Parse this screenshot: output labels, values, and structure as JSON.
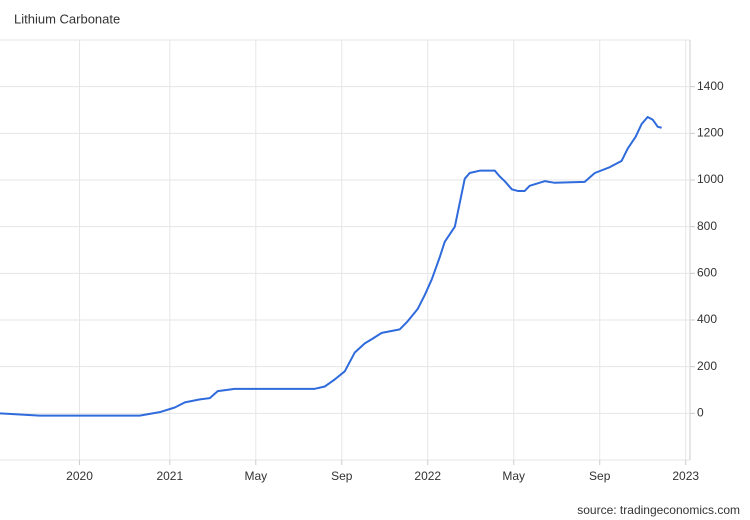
{
  "chart_data": {
    "type": "line",
    "title": "Lithium Carbonate",
    "source": "source: tradingeconomics.com",
    "x": [
      -7.9,
      -6.05,
      -1.4,
      -0.47,
      0.23,
      0.7,
      1.4,
      1.86,
      2.23,
      3.02,
      4.09,
      6.74,
      7.21,
      7.67,
      8.14,
      8.6,
      9.07,
      9.4,
      9.86,
      10.7,
      11.07,
      11.53,
      11.86,
      12.19,
      12.56,
      12.79,
      13.26,
      13.72,
      13.95,
      14.42,
      15.12,
      15.35,
      15.58,
      15.91,
      16.19,
      16.51,
      16.74,
      17.44,
      17.91,
      19.3,
      19.77,
      20.47,
      21.02,
      21.3,
      21.67,
      21.95,
      22.23,
      22.47,
      22.7,
      22.88
    ],
    "series": [
      {
        "name": "Lithium Carbonate",
        "color": "#2f6bdc",
        "values": [
          0,
          -10,
          -10,
          5,
          25,
          47,
          60,
          65,
          95,
          105,
          105,
          105,
          115,
          145,
          180,
          260,
          300,
          318,
          345,
          360,
          395,
          447,
          507,
          575,
          670,
          735,
          800,
          1005,
          1030,
          1040,
          1040,
          1015,
          995,
          960,
          953,
          953,
          975,
          995,
          988,
          992,
          1030,
          1055,
          1082,
          1134,
          1185,
          1240,
          1270,
          1258,
          1228,
          1224
        ]
      }
    ],
    "xlim": [
      -7.9,
      24.2
    ],
    "xticks": [
      {
        "value": -4.2,
        "label": "2020"
      },
      {
        "value": 0,
        "label": "2021"
      },
      {
        "value": 4,
        "label": "May"
      },
      {
        "value": 8,
        "label": "Sep"
      },
      {
        "value": 12,
        "label": "2022"
      },
      {
        "value": 16,
        "label": "May"
      },
      {
        "value": 20,
        "label": "Sep"
      },
      {
        "value": 24,
        "label": "2023"
      }
    ],
    "ylim": [
      -200,
      1600
    ],
    "yticks": [
      0,
      200,
      400,
      600,
      800,
      1000,
      1200,
      1400
    ],
    "grid": true
  }
}
